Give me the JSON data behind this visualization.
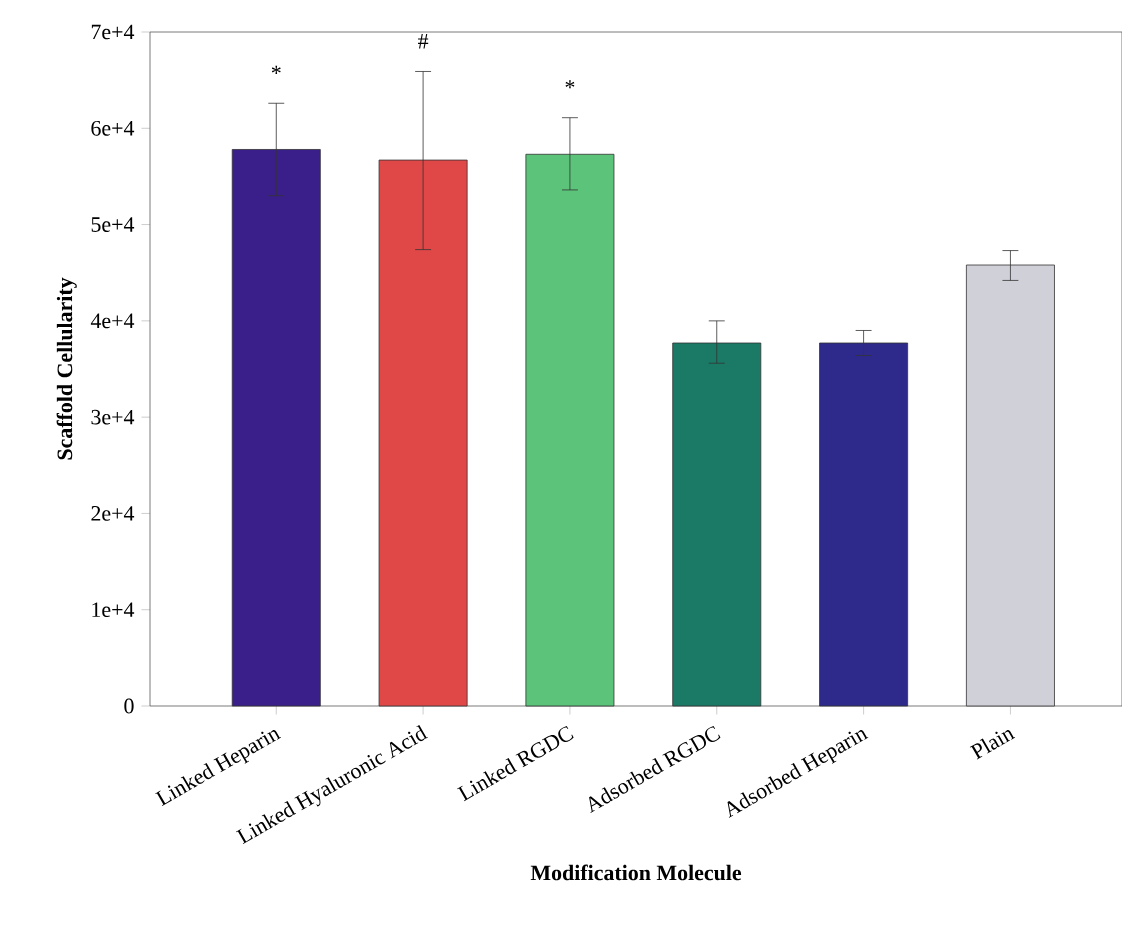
{
  "chart_data": {
    "type": "bar",
    "xlabel": "Modification Molecule",
    "ylabel": "Scaffold Cellularity",
    "categories": [
      "Linked Heparin",
      "Linked Hyaluronic Acid",
      "Linked RGDC",
      "Adsorbed RGDC",
      "Adsorbed Heparin",
      "Plain"
    ],
    "values": [
      57800,
      56700,
      57300,
      37700,
      37700,
      45800
    ],
    "errors": [
      [
        53000,
        62600
      ],
      [
        47400,
        65900
      ],
      [
        53600,
        61100
      ],
      [
        35600,
        40000
      ],
      [
        36400,
        39000
      ],
      [
        44200,
        47300
      ]
    ],
    "colors": [
      "#3a1f8a",
      "#e04848",
      "#5cc47a",
      "#1a7a66",
      "#2e2a8c",
      "#d0d0d8"
    ],
    "ylim": [
      0,
      70000
    ],
    "yticks": [
      0,
      {
        "value": 10000,
        "label": "1e+4"
      },
      {
        "value": 20000,
        "label": "2e+4"
      },
      {
        "value": 30000,
        "label": "3e+4"
      },
      {
        "value": 40000,
        "label": "4e+4"
      },
      {
        "value": 50000,
        "label": "5e+4"
      },
      {
        "value": 60000,
        "label": "6e+4"
      },
      {
        "value": 70000,
        "label": "7e+4"
      }
    ],
    "annotations": [
      "*",
      "#",
      "*"
    ],
    "grid": false
  }
}
